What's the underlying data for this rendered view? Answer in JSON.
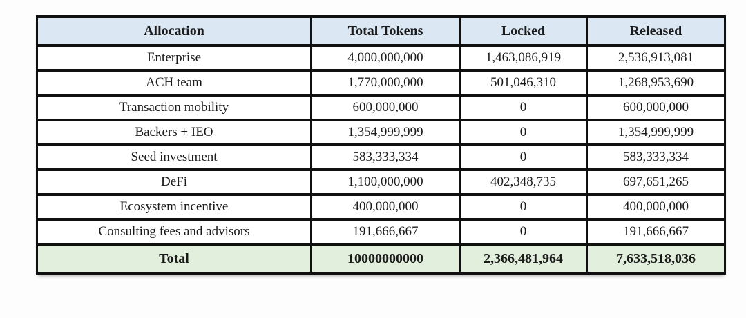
{
  "table": {
    "columns": [
      "Allocation",
      "Total Tokens",
      "Locked",
      "Released"
    ],
    "rows": [
      {
        "allocation": "Enterprise",
        "total": "4,000,000,000",
        "locked": "1,463,086,919",
        "released": "2,536,913,081"
      },
      {
        "allocation": "ACH team",
        "total": "1,770,000,000",
        "locked": "501,046,310",
        "released": "1,268,953,690"
      },
      {
        "allocation": "Transaction mobility",
        "total": "600,000,000",
        "locked": "0",
        "released": "600,000,000"
      },
      {
        "allocation": "Backers + IEO",
        "total": "1,354,999,999",
        "locked": "0",
        "released": "1,354,999,999"
      },
      {
        "allocation": "Seed investment",
        "total": "583,333,334",
        "locked": "0",
        "released": "583,333,334"
      },
      {
        "allocation": "DeFi",
        "total": "1,100,000,000",
        "locked": "402,348,735",
        "released": "697,651,265"
      },
      {
        "allocation": "Ecosystem incentive",
        "total": "400,000,000",
        "locked": "0",
        "released": "400,000,000"
      },
      {
        "allocation": "Consulting fees and advisors",
        "total": "191,666,667",
        "locked": "0",
        "released": "191,666,667"
      }
    ],
    "total_row": {
      "allocation": "Total",
      "total": "10000000000",
      "locked": "2,366,481,964",
      "released": "7,633,518,036"
    }
  },
  "chart_data": {
    "type": "table",
    "title": "",
    "columns": [
      "Allocation",
      "Total Tokens",
      "Locked",
      "Released"
    ],
    "rows_numeric": [
      [
        "Enterprise",
        4000000000,
        1463086919,
        2536913081
      ],
      [
        "ACH team",
        1770000000,
        501046310,
        1268953690
      ],
      [
        "Transaction mobility",
        600000000,
        0,
        600000000
      ],
      [
        "Backers + IEO",
        1354999999,
        0,
        1354999999
      ],
      [
        "Seed investment",
        583333334,
        0,
        583333334
      ],
      [
        "DeFi",
        1100000000,
        402348735,
        697651265
      ],
      [
        "Ecosystem incentive",
        400000000,
        0,
        400000000
      ],
      [
        "Consulting fees and advisors",
        191666667,
        0,
        191666667
      ],
      [
        "Total",
        10000000000,
        2366481964,
        7633518036
      ]
    ]
  },
  "colors": {
    "header_bg": "#dbe8f4",
    "total_bg": "#e2efdc",
    "border": "#101010",
    "text": "#1b1b1b",
    "row_bg": "#ffffff",
    "page_bg": "#fdfdfd"
  }
}
